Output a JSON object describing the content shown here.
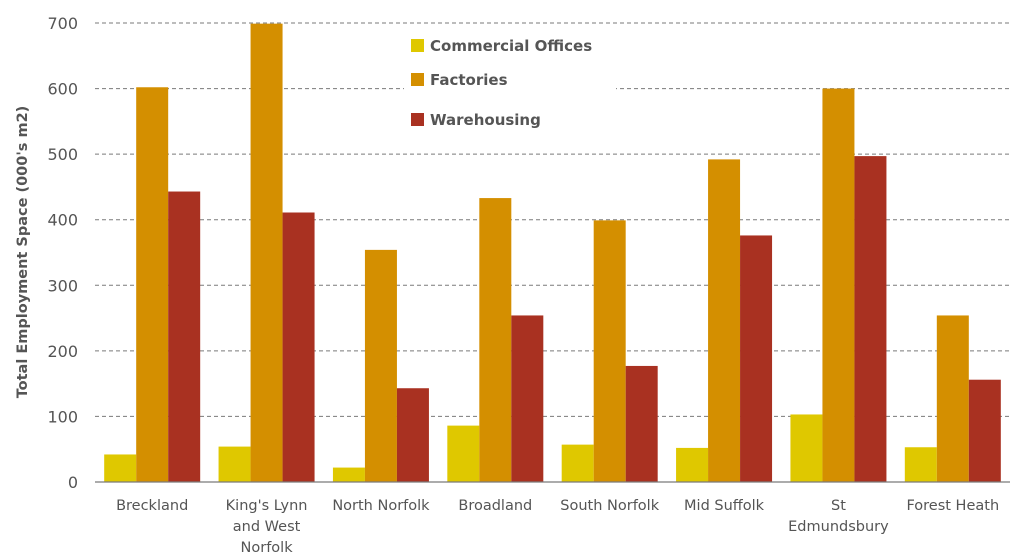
{
  "chart_data": {
    "type": "bar",
    "title": "",
    "xlabel": "",
    "ylabel": "Total Employment Space (000's m2)",
    "ylim": [
      0,
      700
    ],
    "yticks": [
      0,
      100,
      200,
      300,
      400,
      500,
      600,
      700
    ],
    "grid": true,
    "legend_position": "top-center",
    "categories": [
      [
        "Breckland"
      ],
      [
        "King's Lynn",
        "and West",
        "Norfolk"
      ],
      [
        "North Norfolk"
      ],
      [
        "Broadland"
      ],
      [
        "South Norfolk"
      ],
      [
        "Mid Suffolk"
      ],
      [
        "St",
        "Edmundsbury"
      ],
      [
        "Forest Heath"
      ]
    ],
    "series": [
      {
        "name": "Commercial Offices",
        "color": "#dfc800",
        "values": [
          42,
          54,
          22,
          86,
          57,
          52,
          103,
          53
        ]
      },
      {
        "name": "Factories",
        "color": "#d48f00",
        "values": [
          602,
          699,
          354,
          433,
          399,
          492,
          600,
          254
        ]
      },
      {
        "name": "Warehousing",
        "color": "#a93121",
        "values": [
          443,
          411,
          143,
          254,
          177,
          376,
          497,
          156
        ]
      }
    ]
  }
}
